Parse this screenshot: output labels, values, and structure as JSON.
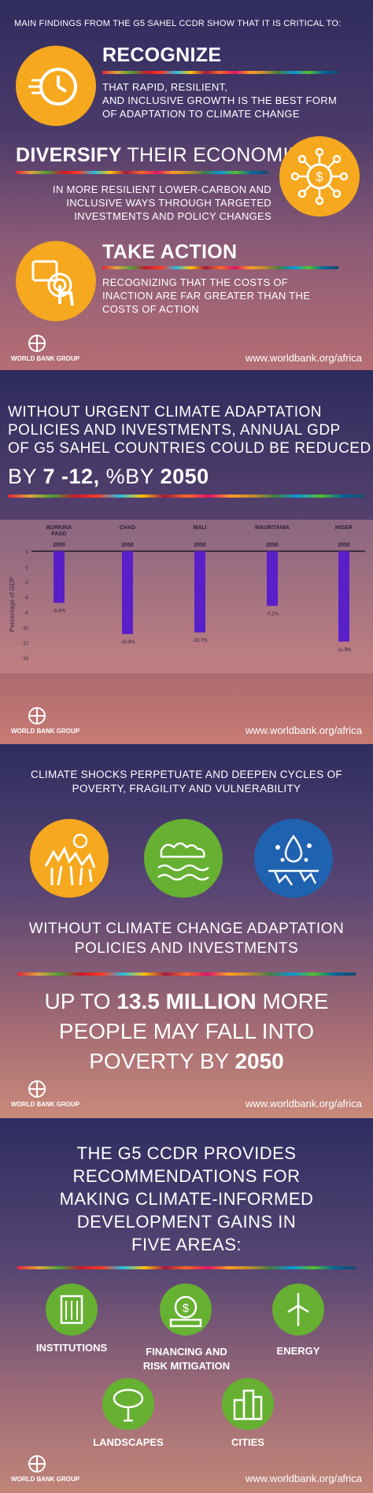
{
  "colors": {
    "accent_yellow": "#f6a81e",
    "green": "#66b032",
    "blue": "#1f62b0",
    "bar_purple": "#5a1fc9"
  },
  "panel1": {
    "intro": "MAIN FINDINGS FROM THE G5 SAHEL CCDR SHOW THAT IT IS CRITICAL TO:",
    "recognize": {
      "title": "RECOGNIZE",
      "lines": [
        "THAT RAPID, RESILIENT,",
        "AND INCLUSIVE GROWTH IS THE BEST FORM",
        "OF ADAPTATION TO CLIMATE CHANGE"
      ],
      "icon": "speed-clock-icon"
    },
    "diversify": {
      "title_bold": "DIVERSIFY",
      "title_rest": " THEIR ECONOMIES",
      "lines": [
        "IN MORE RESILIENT LOWER-CARBON AND",
        "INCLUSIVE WAYS THROUGH TARGETED",
        "INVESTMENTS AND POLICY CHANGES"
      ],
      "icon": "dollar-network-icon"
    },
    "action": {
      "title": "TAKE ACTION",
      "lines": [
        "RECOGNIZING THAT THE COSTS OF",
        "INACTION ARE FAR GREATER THAN THE",
        "COSTS OF ACTION"
      ],
      "icon": "hand-pointer-icon"
    }
  },
  "footer": {
    "logo_text": "WORLD BANK GROUP",
    "url": "www.worldbank.org/africa"
  },
  "panel2": {
    "lines": [
      "WITHOUT URGENT CLIMATE ADAPTATION",
      "POLICIES AND INVESTMENTS, ANNUAL GDP",
      "OF G5 SAHEL COUNTRIES COULD BE REDUCED"
    ],
    "by": "BY ",
    "range": "7 -12, ",
    "pct": "%BY ",
    "year": "2050"
  },
  "chart_data": {
    "type": "bar",
    "categories": [
      "BURKINA FASO",
      "CHAD",
      "MALI",
      "MAURITANIA",
      "NIGER"
    ],
    "category_sub": [
      "2050",
      "2050",
      "2050",
      "2050",
      "2050"
    ],
    "values": [
      -6.8,
      -10.9,
      -10.7,
      -7.2,
      -11.9
    ],
    "value_labels": [
      "-6.8%",
      "-10.9%",
      "-10.7%",
      "-7.2%",
      "-11.9%"
    ],
    "ylabel": "Percentage of GDP",
    "yticks": [
      "0",
      "-2",
      "-4",
      "-6",
      "-8",
      "-10",
      "-12",
      "-14"
    ],
    "ylim": [
      -14,
      0
    ]
  },
  "panel3": {
    "top": [
      "CLIMATE SHOCKS PERPETUATE AND DEEPEN CYCLES OF",
      "POVERTY, FRAGILITY AND VULNERABILITY"
    ],
    "mid": [
      "WITHOUT CLIMATE CHANGE ADAPTATION",
      "POLICIES AND INVESTMENTS"
    ],
    "big": {
      "l1a": "UP TO ",
      "l1b": "13.5 MILLION",
      "l1c": " MORE",
      "l2": "PEOPLE MAY FALL INTO",
      "l3a": "POVERTY BY ",
      "l3b": "2050"
    },
    "icons": [
      "drought-icon",
      "flood-icon",
      "water-crisis-icon"
    ]
  },
  "panel4": {
    "lines": [
      "THE G5 CCDR PROVIDES",
      "RECOMMENDATIONS FOR",
      "MAKING CLIMATE-INFORMED",
      "DEVELOPMENT GAINS IN",
      "FIVE AREAS:"
    ],
    "areas": [
      {
        "label": "INSTITUTIONS",
        "icon": "building-icon"
      },
      {
        "label1": "FINANCING AND",
        "label2": "RISK MITIGATION",
        "icon": "money-icon"
      },
      {
        "label": "ENERGY",
        "icon": "wind-turbine-icon"
      },
      {
        "label": "LANDSCAPES",
        "icon": "tree-icon"
      },
      {
        "label": "CITIES",
        "icon": "city-icon"
      }
    ]
  }
}
